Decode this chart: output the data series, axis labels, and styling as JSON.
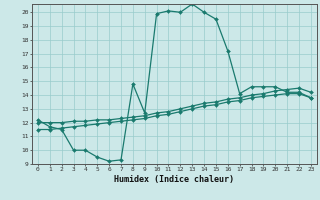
{
  "xlabel": "Humidex (Indice chaleur)",
  "background_color": "#cce8e8",
  "line_color": "#1a7a6e",
  "grid_color": "#99cccc",
  "xlim": [
    -0.5,
    23.5
  ],
  "ylim": [
    9,
    20.6
  ],
  "xticks": [
    0,
    1,
    2,
    3,
    4,
    5,
    6,
    7,
    8,
    9,
    10,
    11,
    12,
    13,
    14,
    15,
    16,
    17,
    18,
    19,
    20,
    21,
    22,
    23
  ],
  "yticks": [
    9,
    10,
    11,
    12,
    13,
    14,
    15,
    16,
    17,
    18,
    19,
    20
  ],
  "curve1_x": [
    0,
    1,
    2,
    3,
    4,
    5,
    6,
    7,
    8,
    9,
    10,
    11,
    12,
    13,
    14,
    15,
    16,
    17,
    18,
    19,
    20,
    21,
    22,
    23
  ],
  "curve1_y": [
    12.2,
    11.7,
    11.5,
    10.0,
    10.0,
    9.5,
    9.2,
    9.3,
    14.8,
    12.7,
    19.9,
    20.1,
    20.0,
    20.6,
    20.0,
    19.5,
    17.2,
    14.1,
    14.6,
    14.6,
    14.6,
    14.2,
    14.2,
    13.8
  ],
  "curve2_x": [
    0,
    1,
    2,
    3,
    4,
    5,
    6,
    7,
    8,
    9,
    10,
    11,
    12,
    13,
    14,
    15,
    16,
    17,
    18,
    19,
    20,
    21,
    22,
    23
  ],
  "curve2_y": [
    12.0,
    12.0,
    12.0,
    12.1,
    12.1,
    12.2,
    12.2,
    12.3,
    12.4,
    12.5,
    12.7,
    12.8,
    13.0,
    13.2,
    13.4,
    13.5,
    13.7,
    13.8,
    14.0,
    14.1,
    14.3,
    14.4,
    14.5,
    14.2
  ],
  "curve3_x": [
    0,
    1,
    2,
    3,
    4,
    5,
    6,
    7,
    8,
    9,
    10,
    11,
    12,
    13,
    14,
    15,
    16,
    17,
    18,
    19,
    20,
    21,
    22,
    23
  ],
  "curve3_y": [
    11.5,
    11.5,
    11.6,
    11.7,
    11.8,
    11.9,
    12.0,
    12.1,
    12.2,
    12.3,
    12.5,
    12.6,
    12.8,
    13.0,
    13.2,
    13.3,
    13.5,
    13.6,
    13.8,
    13.9,
    14.0,
    14.1,
    14.1,
    13.8
  ]
}
